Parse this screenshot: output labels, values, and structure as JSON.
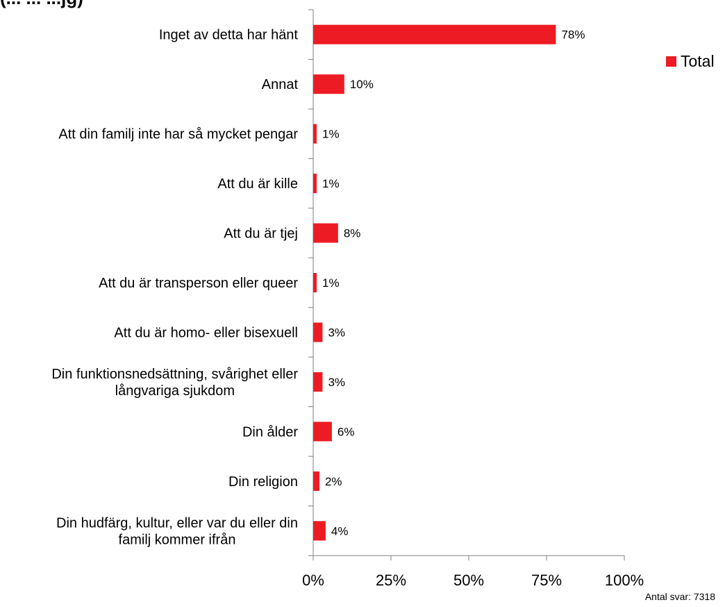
{
  "chart_data": {
    "type": "bar",
    "orientation": "horizontal",
    "title": "",
    "title_partial": "(... ... ...jg)",
    "categories": [
      "Inget av detta har hänt",
      "Annat",
      "Att din familj inte har så mycket pengar",
      "Att du är kille",
      "Att du är tjej",
      "Att du är transperson eller queer",
      "Att du är homo- eller bisexuell",
      "Din funktionsnedsättning, svårighet eller långvariga sjukdom",
      "Din ålder",
      "Din religion",
      "Din hudfärg, kultur, eller var du eller din familj kommer ifrån"
    ],
    "category_lines": [
      [
        "Inget av detta har hänt"
      ],
      [
        "Annat"
      ],
      [
        "Att din familj inte har så mycket pengar"
      ],
      [
        "Att du är kille"
      ],
      [
        "Att du är tjej"
      ],
      [
        "Att du är transperson eller queer"
      ],
      [
        "Att du är homo- eller bisexuell"
      ],
      [
        "Din funktionsnedsättning, svårighet eller",
        "långvariga sjukdom"
      ],
      [
        "Din ålder"
      ],
      [
        "Din religion"
      ],
      [
        "Din hudfärg, kultur, eller var du eller din",
        "familj kommer ifrån"
      ]
    ],
    "series": [
      {
        "name": "Total",
        "color": "#ED1C24",
        "values": [
          78,
          10,
          1,
          1,
          8,
          1,
          3,
          3,
          6,
          2,
          4
        ],
        "labels": [
          "78%",
          "10%",
          "1%",
          "1%",
          "8%",
          "1%",
          "3%",
          "3%",
          "6%",
          "2%",
          "4%"
        ]
      }
    ],
    "x_ticks": [
      "0%",
      "25%",
      "50%",
      "75%",
      "100%"
    ],
    "xlim": [
      0,
      100
    ],
    "grid": false,
    "legend_position": "top-right",
    "xlabel": "",
    "ylabel": ""
  },
  "footnote": "Antal svar: 7318"
}
